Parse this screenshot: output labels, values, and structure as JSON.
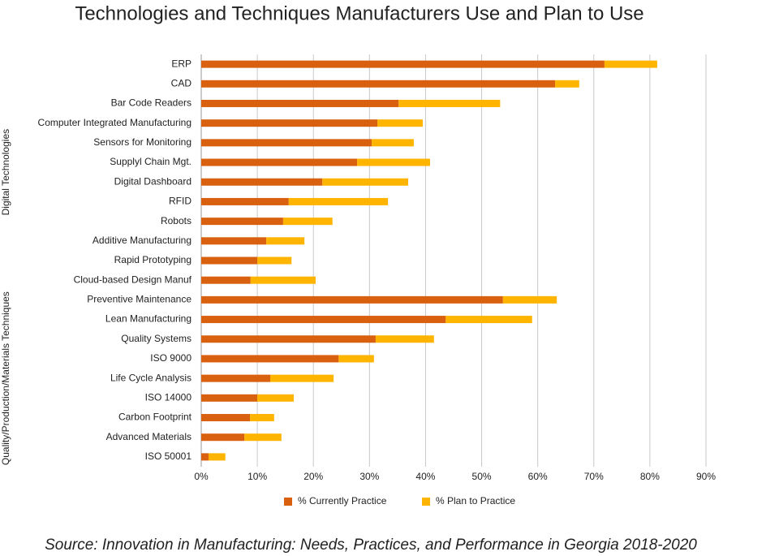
{
  "chart_data": {
    "type": "stacked-bar-horizontal",
    "title": "Technologies and Techniques Manufacturers Use and Plan to Use",
    "source": "Source: Innovation in Manufacturing: Needs, Practices, and Performance in Georgia 2018-2020",
    "groups": [
      {
        "label": "Digital Technologies",
        "categories": [
          "ERP",
          "CAD",
          "Bar Code Readers",
          "Computer Integrated Manufacturing",
          "Sensors for Monitoring",
          "Supplyl Chain Mgt.",
          "Digital Dashboard",
          "RFID",
          "Robots",
          "Additive Manufacturing",
          "Rapid Prototyping",
          "Cloud-based Design Manuf"
        ]
      },
      {
        "label": "Quality/Production/Materials Techniques",
        "categories": [
          "Preventive Maintenance",
          "Lean Manufacturing",
          "Quality Systems",
          "ISO 9000",
          "Life Cycle Analysis",
          "ISO 14000",
          "Carbon Footprint",
          "Advanced Materials",
          "ISO 50001"
        ]
      }
    ],
    "series": [
      {
        "name": "% Currently Practice",
        "color": "#d9600f",
        "values": [
          71.9,
          63.1,
          35.2,
          31.4,
          30.4,
          27.8,
          21.6,
          15.6,
          14.6,
          11.6,
          10.0,
          8.8,
          53.8,
          43.6,
          31.1,
          24.5,
          12.3,
          10.0,
          8.7,
          7.7,
          1.3
        ]
      },
      {
        "name": "% Plan to Practice",
        "color": "#ffb400",
        "values": [
          9.4,
          4.3,
          18.1,
          8.1,
          7.5,
          13.0,
          15.3,
          17.7,
          8.8,
          6.8,
          6.1,
          11.6,
          9.6,
          15.4,
          10.4,
          6.3,
          11.3,
          6.5,
          4.3,
          6.6,
          3.0
        ]
      }
    ],
    "xlim": [
      0,
      90
    ],
    "xticks": [
      {
        "value": 0,
        "label": "0%"
      },
      {
        "value": 10,
        "label": "10%"
      },
      {
        "value": 20,
        "label": "20%"
      },
      {
        "value": 30,
        "label": "30%"
      },
      {
        "value": 40,
        "label": "40%"
      },
      {
        "value": 50,
        "label": "50%"
      },
      {
        "value": 60,
        "label": "60%"
      },
      {
        "value": 70,
        "label": "70%"
      },
      {
        "value": 80,
        "label": "80%"
      },
      {
        "value": 90,
        "label": "90%"
      }
    ],
    "grid": true,
    "legend": "bottom"
  }
}
